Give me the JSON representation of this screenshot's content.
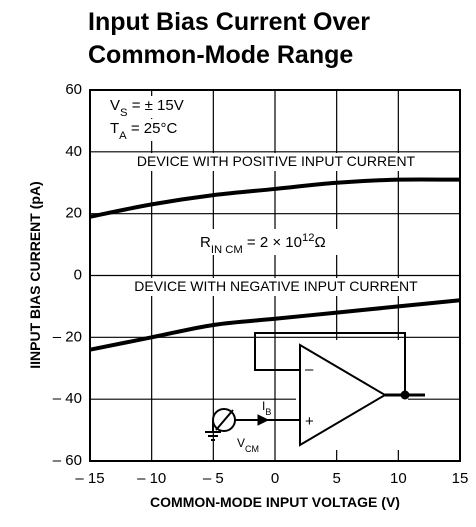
{
  "chart_data": {
    "type": "line",
    "title": [
      "Input Bias Current Over",
      "Common-Mode Range"
    ],
    "xlabel": "COMMON-MODE INPUT VOLTAGE (V)",
    "ylabel": "IINPUT BIAS CURRENT (pA)",
    "x": [
      -15,
      -10,
      -5,
      0,
      5,
      10,
      15
    ],
    "series": [
      {
        "name": "DEVICE WITH POSITIVE INPUT CURRENT",
        "color": "#000000",
        "values": [
          19,
          23,
          26,
          28,
          30,
          31,
          31
        ]
      },
      {
        "name": "DEVICE WITH NEGATIVE INPUT CURRENT",
        "color": "#000000",
        "values": [
          -24,
          -20,
          -16,
          -14,
          -12,
          -10,
          -8
        ]
      }
    ],
    "xlim": [
      -15,
      15
    ],
    "ylim": [
      -60,
      60
    ],
    "xticks": [
      {
        "value": -15,
        "label": "– 15"
      },
      {
        "value": -10,
        "label": "– 10"
      },
      {
        "value": -5,
        "label": "– 5"
      },
      0,
      5,
      10,
      15
    ],
    "yticks": [
      {
        "value": -60,
        "label": "– 60"
      },
      {
        "value": -40,
        "label": "– 40"
      },
      {
        "value": -20,
        "label": "– 20"
      },
      0,
      20,
      40,
      60
    ],
    "grid": true,
    "annotations": [
      {
        "main": "V",
        "sub": "S",
        "rest": " = ± 15V"
      },
      {
        "main": "T",
        "sub": "A",
        "rest": " = 25°C"
      },
      {
        "main": "R",
        "sub": "IN CM",
        "rest": " = 2 × 10",
        "sup": "12",
        "end": "Ω"
      }
    ],
    "circuit_labels": [
      {
        "main": "I",
        "sub": "B"
      },
      {
        "main": "V",
        "sub": "CM"
      },
      {
        "main": "–"
      },
      {
        "main": "+"
      }
    ]
  }
}
